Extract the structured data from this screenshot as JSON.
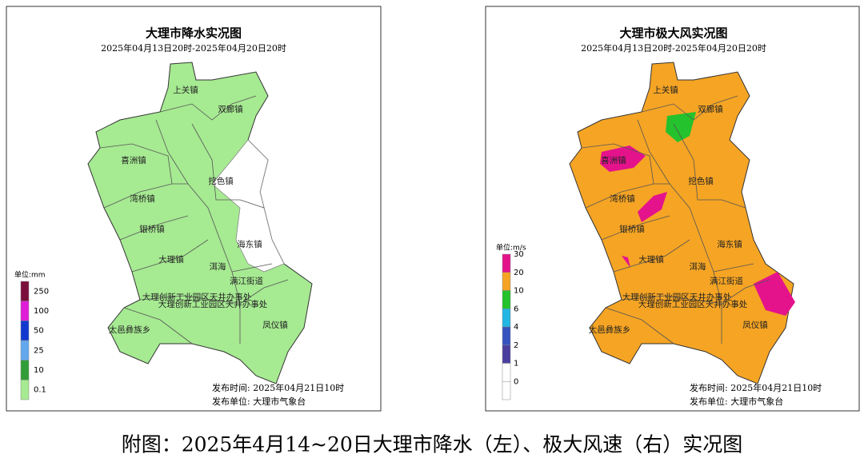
{
  "panels": [
    {
      "title": "大理市降水实况图",
      "subtitle": "2025年04月13日20时-2025年04月20日20时",
      "legend_unit": "单位:mm",
      "legend": [
        {
          "label": "250",
          "color": "#7a0f3c"
        },
        {
          "label": "100",
          "color": "#e01ed8"
        },
        {
          "label": "50",
          "color": "#1238d0"
        },
        {
          "label": "25",
          "color": "#62a8ee"
        },
        {
          "label": "10",
          "color": "#2f9e36"
        },
        {
          "label": "0.1",
          "color": "#a6ea92"
        }
      ],
      "footer": [
        "发布时间: 2025年04月21日10时",
        "发布单位: 大理市气象台"
      ]
    },
    {
      "title": "大理市极大风实况图",
      "subtitle": "2025年04月13日20时-2025年04月20日20时",
      "legend_unit": "单位:m/s",
      "legend": [
        {
          "label": "30",
          "color": "#e4138c"
        },
        {
          "label": "20",
          "color": "#f5a424"
        },
        {
          "label": "10",
          "color": "#24c22c"
        },
        {
          "label": "6",
          "color": "#22b6e2"
        },
        {
          "label": "4",
          "color": "#3552bf"
        },
        {
          "label": "2",
          "color": "#4a3f9e"
        },
        {
          "label": "1",
          "color": "#ffffff"
        },
        {
          "label": "0",
          "color": "#ffffff"
        }
      ],
      "footer": [
        "发布时间: 2025年04月21日10时",
        "发布单位: 大理市气象台"
      ]
    }
  ],
  "towns": [
    "上关镇",
    "双廊镇",
    "喜洲镇",
    "挖色镇",
    "湾桥镇",
    "银桥镇",
    "海东镇",
    "大理镇",
    "洱海",
    "满江街道",
    "大理创新工业园区天井办事处",
    "大理创新工业园区天井办事处",
    "太邑彝族乡",
    "凤仪镇"
  ],
  "caption": "附图：2025年4月14~20日大理市降水（左）、极大风速（右）实况图"
}
